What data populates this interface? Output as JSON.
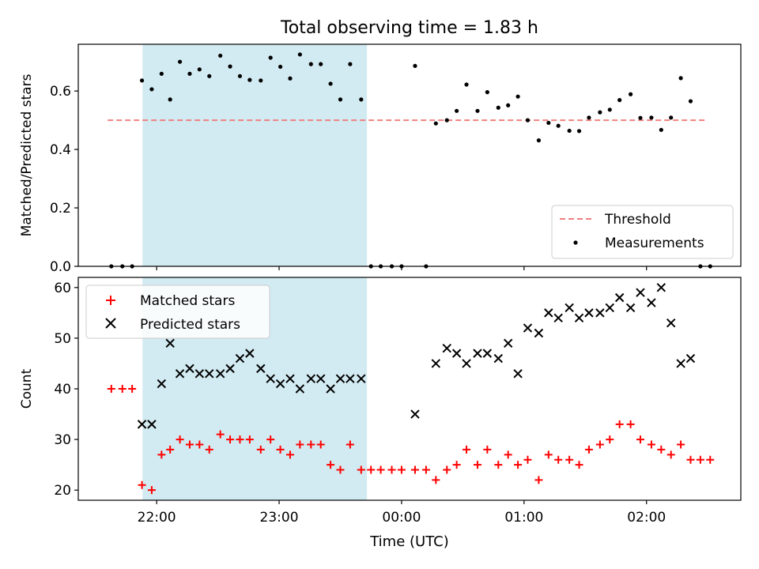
{
  "figure": {
    "title": "Total observing time = 1.83 h",
    "x_axis": {
      "label": "Time (UTC)",
      "ticks": [
        {
          "t": 22.0,
          "label": "22:00"
        },
        {
          "t": 23.0,
          "label": "23:00"
        },
        {
          "t": 24.0,
          "label": "00:00"
        },
        {
          "t": 25.0,
          "label": "01:00"
        },
        {
          "t": 26.0,
          "label": "02:00"
        }
      ],
      "range": [
        21.36,
        26.77
      ]
    },
    "highlight_span": {
      "from": 21.885,
      "to": 23.717,
      "color": "#add8e6"
    }
  },
  "chart_data": [
    {
      "type": "scatter",
      "panel": "top",
      "ylabel": "Matched/Predicted stars",
      "ylim": [
        0.0,
        0.76
      ],
      "yticks": [
        0.0,
        0.2,
        0.4,
        0.6
      ],
      "legend": {
        "placement": "lower-right",
        "entries": [
          "Threshold",
          "Measurements"
        ]
      },
      "threshold": {
        "name": "Threshold",
        "value": 0.5,
        "x_from": 21.6,
        "x_to": 26.5,
        "color": "#f08080",
        "style": "dashed"
      },
      "series": [
        {
          "name": "Measurements",
          "color": "#000000",
          "marker": "dot",
          "points": [
            [
              21.63,
              0.0
            ],
            [
              21.72,
              0.0
            ],
            [
              21.8,
              0.0
            ],
            [
              21.88,
              0.636
            ],
            [
              21.96,
              0.606
            ],
            [
              22.04,
              0.659
            ],
            [
              22.11,
              0.571
            ],
            [
              22.19,
              0.7
            ],
            [
              22.27,
              0.659
            ],
            [
              22.35,
              0.674
            ],
            [
              22.43,
              0.651
            ],
            [
              22.52,
              0.721
            ],
            [
              22.6,
              0.684
            ],
            [
              22.68,
              0.651
            ],
            [
              22.76,
              0.638
            ],
            [
              22.85,
              0.636
            ],
            [
              22.93,
              0.714
            ],
            [
              23.01,
              0.683
            ],
            [
              23.09,
              0.643
            ],
            [
              23.17,
              0.725
            ],
            [
              23.26,
              0.692
            ],
            [
              23.34,
              0.692
            ],
            [
              23.42,
              0.625
            ],
            [
              23.5,
              0.571
            ],
            [
              23.58,
              0.692
            ],
            [
              23.67,
              0.571
            ],
            [
              23.75,
              0.0
            ],
            [
              23.83,
              0.0
            ],
            [
              23.92,
              0.0
            ],
            [
              24.0,
              0.0
            ],
            [
              24.11,
              0.686
            ],
            [
              24.2,
              0.0
            ],
            [
              24.28,
              0.489
            ],
            [
              24.37,
              0.5
            ],
            [
              24.45,
              0.532
            ],
            [
              24.53,
              0.622
            ],
            [
              24.62,
              0.532
            ],
            [
              24.7,
              0.596
            ],
            [
              24.79,
              0.543
            ],
            [
              24.87,
              0.551
            ],
            [
              24.95,
              0.581
            ],
            [
              25.03,
              0.5
            ],
            [
              25.12,
              0.431
            ],
            [
              25.2,
              0.491
            ],
            [
              25.28,
              0.481
            ],
            [
              25.37,
              0.464
            ],
            [
              25.45,
              0.463
            ],
            [
              25.53,
              0.509
            ],
            [
              25.62,
              0.527
            ],
            [
              25.7,
              0.536
            ],
            [
              25.78,
              0.569
            ],
            [
              25.87,
              0.589
            ],
            [
              25.95,
              0.508
            ],
            [
              26.04,
              0.509
            ],
            [
              26.12,
              0.467
            ],
            [
              26.2,
              0.509
            ],
            [
              26.28,
              0.644
            ],
            [
              26.36,
              0.565
            ],
            [
              26.44,
              0.0
            ],
            [
              26.52,
              0.0
            ]
          ]
        }
      ]
    },
    {
      "type": "scatter",
      "panel": "bottom",
      "ylabel": "Count",
      "ylim": [
        18,
        62
      ],
      "yticks": [
        20,
        30,
        40,
        50,
        60
      ],
      "legend": {
        "placement": "upper-left",
        "entries": [
          "Matched stars",
          "Predicted stars"
        ]
      },
      "series": [
        {
          "name": "Matched stars",
          "color": "#ff0000",
          "marker": "plus",
          "points": [
            [
              21.63,
              40
            ],
            [
              21.72,
              40
            ],
            [
              21.8,
              40
            ],
            [
              21.88,
              21
            ],
            [
              21.96,
              20
            ],
            [
              22.04,
              27
            ],
            [
              22.11,
              28
            ],
            [
              22.19,
              30
            ],
            [
              22.27,
              29
            ],
            [
              22.35,
              29
            ],
            [
              22.43,
              28
            ],
            [
              22.52,
              31
            ],
            [
              22.6,
              30
            ],
            [
              22.68,
              30
            ],
            [
              22.76,
              30
            ],
            [
              22.85,
              28
            ],
            [
              22.93,
              30
            ],
            [
              23.01,
              28
            ],
            [
              23.09,
              27
            ],
            [
              23.17,
              29
            ],
            [
              23.26,
              29
            ],
            [
              23.34,
              29
            ],
            [
              23.42,
              25
            ],
            [
              23.5,
              24
            ],
            [
              23.58,
              29
            ],
            [
              23.67,
              24
            ],
            [
              23.75,
              24
            ],
            [
              23.83,
              24
            ],
            [
              23.92,
              24
            ],
            [
              24.0,
              24
            ],
            [
              24.11,
              24
            ],
            [
              24.2,
              24
            ],
            [
              24.28,
              22
            ],
            [
              24.37,
              24
            ],
            [
              24.45,
              25
            ],
            [
              24.53,
              28
            ],
            [
              24.62,
              25
            ],
            [
              24.7,
              28
            ],
            [
              24.79,
              25
            ],
            [
              24.87,
              27
            ],
            [
              24.95,
              25
            ],
            [
              25.03,
              26
            ],
            [
              25.12,
              22
            ],
            [
              25.2,
              27
            ],
            [
              25.28,
              26
            ],
            [
              25.37,
              26
            ],
            [
              25.45,
              25
            ],
            [
              25.53,
              28
            ],
            [
              25.62,
              29
            ],
            [
              25.7,
              30
            ],
            [
              25.78,
              33
            ],
            [
              25.87,
              33
            ],
            [
              25.95,
              30
            ],
            [
              26.04,
              29
            ],
            [
              26.12,
              28
            ],
            [
              26.2,
              27
            ],
            [
              26.28,
              29
            ],
            [
              26.36,
              26
            ],
            [
              26.44,
              26
            ],
            [
              26.52,
              26
            ]
          ]
        },
        {
          "name": "Predicted stars",
          "color": "#000000",
          "marker": "x",
          "points": [
            [
              21.88,
              33
            ],
            [
              21.96,
              33
            ],
            [
              22.04,
              41
            ],
            [
              22.11,
              49
            ],
            [
              22.19,
              43
            ],
            [
              22.27,
              44
            ],
            [
              22.35,
              43
            ],
            [
              22.43,
              43
            ],
            [
              22.52,
              43
            ],
            [
              22.6,
              44
            ],
            [
              22.68,
              46
            ],
            [
              22.76,
              47
            ],
            [
              22.85,
              44
            ],
            [
              22.93,
              42
            ],
            [
              23.01,
              41
            ],
            [
              23.09,
              42
            ],
            [
              23.17,
              40
            ],
            [
              23.26,
              42
            ],
            [
              23.34,
              42
            ],
            [
              23.42,
              40
            ],
            [
              23.5,
              42
            ],
            [
              23.58,
              42
            ],
            [
              23.67,
              42
            ],
            [
              24.11,
              35
            ],
            [
              24.28,
              45
            ],
            [
              24.37,
              48
            ],
            [
              24.45,
              47
            ],
            [
              24.53,
              45
            ],
            [
              24.62,
              47
            ],
            [
              24.7,
              47
            ],
            [
              24.79,
              46
            ],
            [
              24.87,
              49
            ],
            [
              24.95,
              43
            ],
            [
              25.03,
              52
            ],
            [
              25.12,
              51
            ],
            [
              25.2,
              55
            ],
            [
              25.28,
              54
            ],
            [
              25.37,
              56
            ],
            [
              25.45,
              54
            ],
            [
              25.53,
              55
            ],
            [
              25.62,
              55
            ],
            [
              25.7,
              56
            ],
            [
              25.78,
              58
            ],
            [
              25.87,
              56
            ],
            [
              25.95,
              59
            ],
            [
              26.04,
              57
            ],
            [
              26.12,
              60
            ],
            [
              26.2,
              53
            ],
            [
              26.28,
              45
            ],
            [
              26.36,
              46
            ]
          ]
        }
      ]
    }
  ]
}
